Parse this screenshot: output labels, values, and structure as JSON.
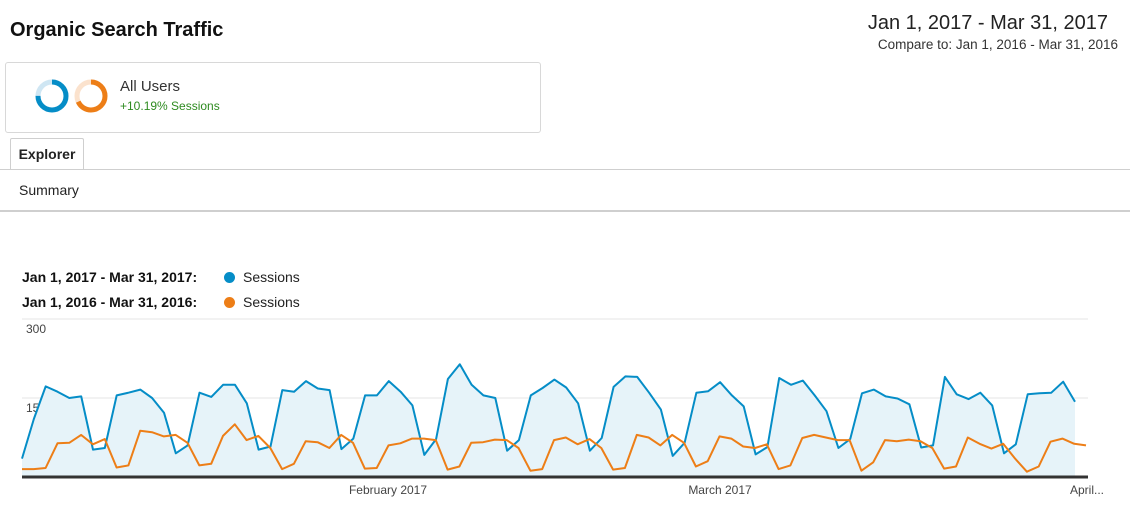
{
  "header": {
    "title": "Organic Search Traffic",
    "date_range": "Jan 1, 2017 - Mar 31, 2017",
    "compare_range": "Compare to: Jan 1, 2016 - Mar 31, 2016"
  },
  "segment": {
    "name": "All Users",
    "stat": "+10.19% Sessions",
    "icons": [
      "donut-blue-icon",
      "donut-orange-icon"
    ]
  },
  "tabs": {
    "explorer": "Explorer",
    "summary": "Summary"
  },
  "legend": [
    {
      "range": "Jan 1, 2017 - Mar 31, 2017:",
      "name": "Sessions",
      "color": "#058dc7"
    },
    {
      "range": "Jan 1, 2016 - Mar 31, 2016:",
      "name": "Sessions",
      "color": "#ed7e17"
    }
  ],
  "chart_data": {
    "type": "line",
    "y_ticks": [
      "300",
      "150"
    ],
    "ylim": [
      0,
      300
    ],
    "grid": true,
    "x_tick_labels": [
      "February 2017",
      "March 2017",
      "April..."
    ],
    "series": [
      {
        "name": "Sessions",
        "period": "Jan 1, 2017 - Mar 31, 2017",
        "color": "#058dc7",
        "area_fill": "#e6f3f9",
        "values": [
          35,
          110,
          172,
          162,
          150,
          153,
          52,
          55,
          155,
          160,
          166,
          150,
          122,
          45,
          60,
          160,
          152,
          175,
          175,
          140,
          52,
          58,
          165,
          162,
          182,
          168,
          165,
          53,
          73,
          155,
          155,
          182,
          162,
          136,
          42,
          72,
          186,
          214,
          175,
          155,
          150,
          50,
          70,
          155,
          169,
          185,
          170,
          140,
          50,
          74,
          171,
          191,
          190,
          160,
          128,
          40,
          65,
          160,
          163,
          180,
          155,
          134,
          43,
          57,
          188,
          175,
          183,
          155,
          125,
          55,
          72,
          159,
          166,
          153,
          149,
          138,
          56,
          60,
          190,
          157,
          148,
          160,
          136,
          45,
          62,
          157,
          159,
          160,
          181,
          143
        ]
      },
      {
        "name": "Sessions",
        "period": "Jan 1, 2016 - Mar 31, 2016",
        "color": "#ed7e17",
        "values": [
          15,
          15,
          17,
          64,
          65,
          80,
          62,
          72,
          18,
          22,
          88,
          85,
          77,
          80,
          65,
          22,
          25,
          78,
          100,
          70,
          78,
          55,
          15,
          25,
          68,
          66,
          55,
          80,
          65,
          16,
          17,
          60,
          64,
          73,
          73,
          70,
          14,
          20,
          65,
          66,
          71,
          70,
          55,
          12,
          15,
          70,
          75,
          62,
          72,
          55,
          14,
          17,
          80,
          75,
          60,
          80,
          65,
          20,
          30,
          77,
          73,
          58,
          55,
          62,
          15,
          22,
          74,
          80,
          75,
          70,
          70,
          12,
          28,
          70,
          68,
          71,
          68,
          55,
          16,
          20,
          75,
          63,
          54,
          63,
          35,
          10,
          20,
          67,
          73,
          63,
          60
        ]
      }
    ]
  }
}
